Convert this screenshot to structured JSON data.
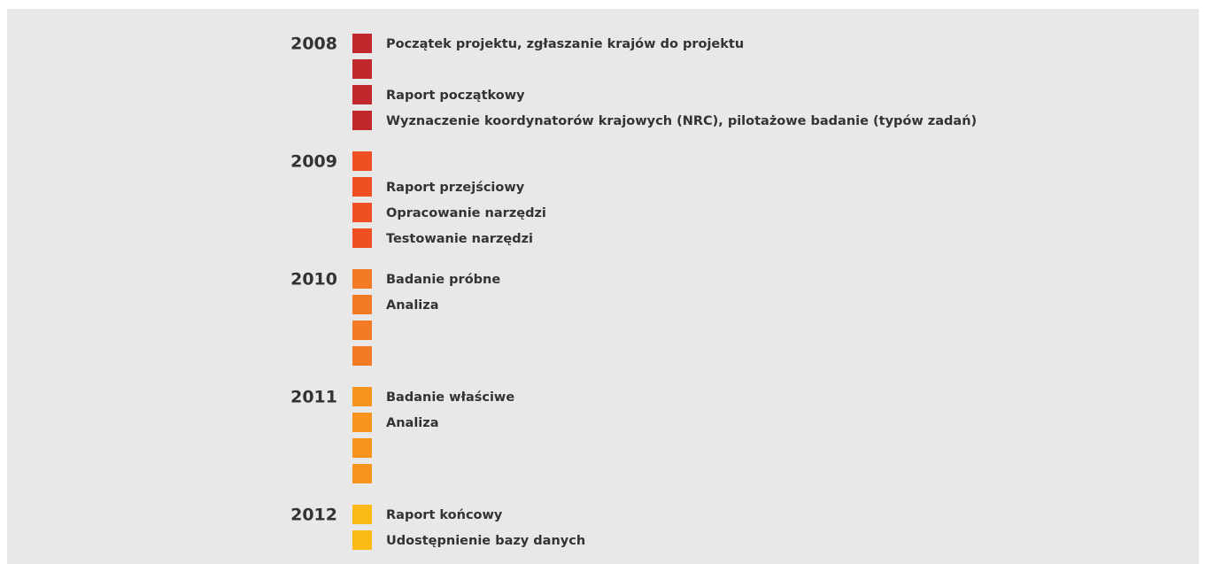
{
  "timeline": [
    {
      "year": "2008",
      "color": "#c1272d",
      "quarters": [
        {
          "label": "Początek projektu, zgłaszanie krajów do projektu"
        },
        {},
        {
          "label": "Raport początkowy"
        },
        {
          "label": "Wyznaczenie koordynatorów krajowych (NRC), pilotażowe badanie (typów zadań)"
        }
      ]
    },
    {
      "year": "2009",
      "color": "#f04e23",
      "quarters": [
        {},
        {
          "label": "Raport przejściowy"
        },
        {
          "label": "Opracowanie narzędzi"
        },
        {
          "label": "Testowanie narzędzi"
        }
      ]
    },
    {
      "year": "2010",
      "color": "#f47b25",
      "quarters": [
        {
          "label": "Badanie próbne"
        },
        {
          "label": "Analiza"
        },
        {},
        {}
      ]
    },
    {
      "year": "2011",
      "color": "#f7941d",
      "quarters": [
        {
          "label": "Badanie właściwe"
        },
        {
          "label": "Analiza"
        },
        {},
        {}
      ]
    },
    {
      "year": "2012",
      "color": "#fbba16",
      "quarters": [
        {
          "label": "Raport końcowy"
        },
        {
          "label": "Udostępnienie bazy danych"
        }
      ]
    }
  ]
}
